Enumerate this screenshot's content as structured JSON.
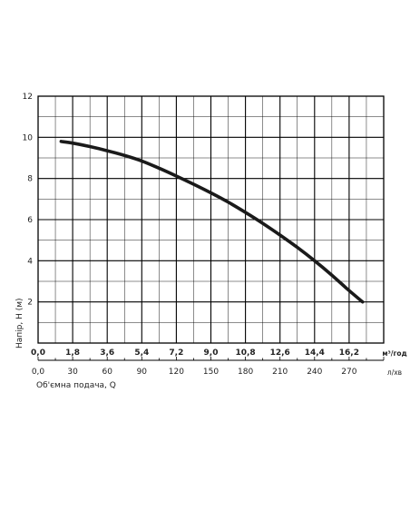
{
  "chart_data": {
    "type": "line",
    "ylabel": "Напір, H (м)",
    "xlabel": "Об'ємна подача, Q",
    "x_unit_primary": "м³/год",
    "x_unit_secondary": "л/хв",
    "ylim": [
      0,
      12
    ],
    "xlim": [
      0,
      18
    ],
    "grid": true,
    "y_ticks": [
      "0",
      "2",
      "4",
      "6",
      "8",
      "10",
      "12"
    ],
    "x_ticks_primary": [
      "0,0",
      "1,8",
      "3,6",
      "5,4",
      "7,2",
      "9,0",
      "10,8",
      "12,6",
      "14,4",
      "16,2"
    ],
    "x_ticks_secondary": [
      "0,0",
      "30",
      "60",
      "90",
      "120",
      "150",
      "180",
      "210",
      "240",
      "270"
    ],
    "series": [
      {
        "name": "",
        "x": [
          1.2,
          1.8,
          2.7,
          3.6,
          4.5,
          5.4,
          6.3,
          7.2,
          8.1,
          9.0,
          9.9,
          10.8,
          11.7,
          12.6,
          13.5,
          14.4,
          15.3,
          16.2,
          16.9
        ],
        "y": [
          9.8,
          9.72,
          9.55,
          9.35,
          9.12,
          8.85,
          8.5,
          8.12,
          7.72,
          7.3,
          6.85,
          6.35,
          5.82,
          5.25,
          4.65,
          4.0,
          3.3,
          2.55,
          2.0
        ]
      }
    ]
  }
}
